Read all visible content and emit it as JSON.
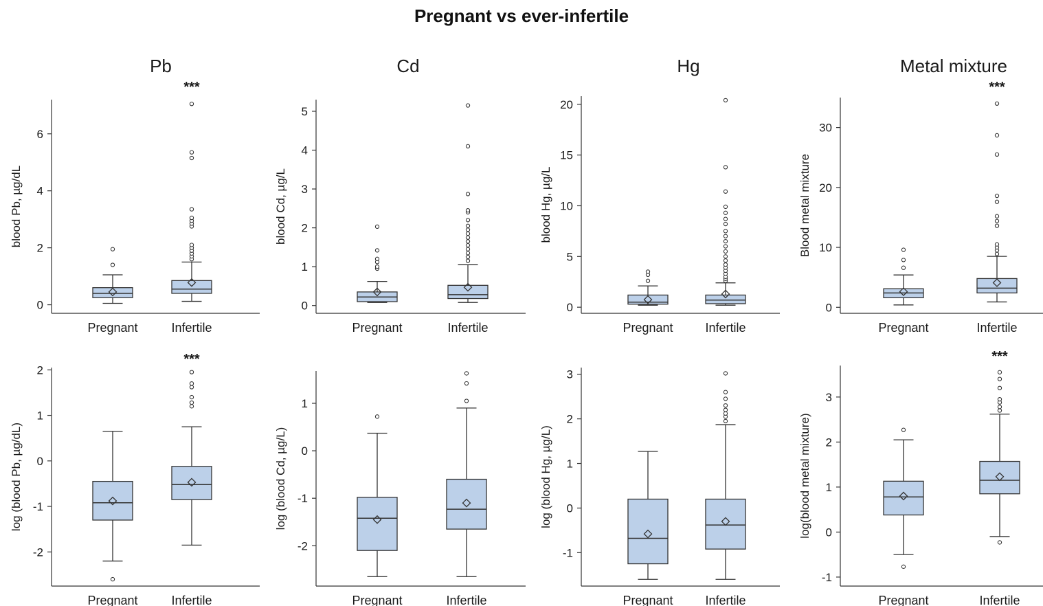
{
  "title": "Pregnant  vs ever-infertile",
  "colors": {
    "box_fill": "#bcd0e9",
    "box_stroke": "#333333",
    "axis": "#333333"
  },
  "chart_data": [
    {
      "type": "box",
      "column_title": "Pb",
      "ylabel": "blood Pb, µg/dL",
      "yticks": [
        0,
        2,
        4,
        6
      ],
      "ylim": [
        -0.3,
        7.2
      ],
      "significance": "***",
      "categories": [
        "Pregnant",
        "Infertile"
      ],
      "groups": [
        {
          "label": "Pregnant",
          "whisker_low": 0.05,
          "q1": 0.25,
          "median": 0.4,
          "q3": 0.6,
          "whisker_high": 1.05,
          "mean": 0.45,
          "outliers": [
            1.4,
            1.95
          ]
        },
        {
          "label": "Infertile",
          "whisker_low": 0.12,
          "q1": 0.4,
          "median": 0.55,
          "q3": 0.85,
          "whisker_high": 1.5,
          "mean": 0.78,
          "outliers": [
            1.6,
            1.7,
            1.8,
            1.9,
            2.0,
            2.1,
            2.75,
            2.85,
            2.95,
            3.05,
            3.35,
            5.15,
            5.35,
            7.05
          ]
        }
      ]
    },
    {
      "type": "box",
      "column_title": "Cd",
      "ylabel": "blood Cd, µg/L",
      "yticks": [
        0,
        1,
        2,
        3,
        4,
        5
      ],
      "ylim": [
        -0.2,
        5.3
      ],
      "significance": "",
      "categories": [
        "Pregnant",
        "Infertile"
      ],
      "groups": [
        {
          "label": "Pregnant",
          "whisker_low": 0.08,
          "q1": 0.1,
          "median": 0.22,
          "q3": 0.35,
          "whisker_high": 0.62,
          "mean": 0.35,
          "outliers": [
            0.95,
            1.0,
            1.12,
            1.2,
            1.42,
            2.03
          ]
        },
        {
          "label": "Infertile",
          "whisker_low": 0.08,
          "q1": 0.18,
          "median": 0.28,
          "q3": 0.52,
          "whisker_high": 1.05,
          "mean": 0.47,
          "outliers": [
            1.15,
            1.25,
            1.35,
            1.45,
            1.55,
            1.65,
            1.75,
            1.85,
            1.95,
            2.05,
            2.2,
            2.4,
            2.45,
            2.87,
            4.1,
            5.15
          ]
        }
      ]
    },
    {
      "type": "box",
      "column_title": "Hg",
      "ylabel": "blood Hg, µg/L",
      "yticks": [
        0,
        5,
        10,
        15,
        20
      ],
      "ylim": [
        -0.6,
        20.8
      ],
      "significance": "",
      "categories": [
        "Pregnant",
        "Infertile"
      ],
      "groups": [
        {
          "label": "Pregnant",
          "whisker_low": 0.2,
          "q1": 0.3,
          "median": 0.5,
          "q3": 1.2,
          "whisker_high": 2.1,
          "mean": 0.75,
          "outliers": [
            2.6,
            3.2,
            3.5
          ]
        },
        {
          "label": "Infertile",
          "whisker_low": 0.2,
          "q1": 0.35,
          "median": 0.7,
          "q3": 1.2,
          "whisker_high": 2.4,
          "mean": 1.3,
          "outliers": [
            2.6,
            2.8,
            3.0,
            3.3,
            3.6,
            3.9,
            4.2,
            4.6,
            5.0,
            5.5,
            6.0,
            6.5,
            7.0,
            7.5,
            8.2,
            8.7,
            9.3,
            9.9,
            11.4,
            13.8,
            20.4
          ]
        }
      ]
    },
    {
      "type": "box",
      "column_title": "Metal mixture",
      "ylabel": "Blood metal mixture",
      "yticks": [
        0,
        10,
        20,
        30
      ],
      "ylim": [
        -1.0,
        35.0
      ],
      "significance": "***",
      "categories": [
        "Pregnant",
        "Infertile"
      ],
      "groups": [
        {
          "label": "Pregnant",
          "whisker_low": 0.4,
          "q1": 1.6,
          "median": 2.4,
          "q3": 3.1,
          "whisker_high": 5.4,
          "mean": 2.6,
          "outliers": [
            6.6,
            7.9,
            9.6
          ]
        },
        {
          "label": "Infertile",
          "whisker_low": 0.9,
          "q1": 2.4,
          "median": 3.2,
          "q3": 4.8,
          "whisker_high": 8.5,
          "mean": 4.1,
          "outliers": [
            8.9,
            9.5,
            10.0,
            10.5,
            13.6,
            14.4,
            15.2,
            17.6,
            18.6,
            25.5,
            28.7,
            34.0
          ]
        }
      ]
    },
    {
      "type": "box",
      "column_title": "",
      "ylabel": "log (blood Pb, µg/dL)",
      "yticks": [
        -2,
        -1,
        0,
        1,
        2
      ],
      "ylim": [
        -2.75,
        2.05
      ],
      "significance": "***",
      "categories": [
        "Pregnant",
        "Infertile"
      ],
      "groups": [
        {
          "label": "Pregnant",
          "whisker_low": -2.2,
          "q1": -1.3,
          "median": -0.92,
          "q3": -0.45,
          "whisker_high": 0.65,
          "mean": -0.88,
          "outliers": [
            -2.6
          ]
        },
        {
          "label": "Infertile",
          "whisker_low": -1.85,
          "q1": -0.85,
          "median": -0.52,
          "q3": -0.12,
          "whisker_high": 0.75,
          "mean": -0.47,
          "outliers": [
            1.2,
            1.28,
            1.4,
            1.62,
            1.7,
            1.95
          ]
        }
      ]
    },
    {
      "type": "box",
      "column_title": "",
      "ylabel": "log (blood Cd, µg/L)",
      "yticks": [
        -2,
        -1,
        0,
        1
      ],
      "ylim": [
        -2.85,
        1.68
      ],
      "significance": "",
      "categories": [
        "Pregnant",
        "Infertile"
      ],
      "groups": [
        {
          "label": "Pregnant",
          "whisker_low": -2.65,
          "q1": -2.1,
          "median": -1.42,
          "q3": -0.98,
          "whisker_high": 0.37,
          "mean": -1.45,
          "outliers": [
            0.72
          ]
        },
        {
          "label": "Infertile",
          "whisker_low": -2.65,
          "q1": -1.65,
          "median": -1.23,
          "q3": -0.6,
          "whisker_high": 0.9,
          "mean": -1.1,
          "outliers": [
            1.05,
            1.42,
            1.63
          ]
        }
      ]
    },
    {
      "type": "box",
      "column_title": "",
      "ylabel": "log (blood Hg, µg/L)",
      "yticks": [
        -1,
        0,
        1,
        2,
        3
      ],
      "ylim": [
        -1.75,
        3.15
      ],
      "significance": "",
      "categories": [
        "Pregnant",
        "Infertile"
      ],
      "groups": [
        {
          "label": "Pregnant",
          "whisker_low": -1.6,
          "q1": -1.25,
          "median": -0.68,
          "q3": 0.2,
          "whisker_high": 1.27,
          "mean": -0.58,
          "outliers": []
        },
        {
          "label": "Infertile",
          "whisker_low": -1.6,
          "q1": -0.92,
          "median": -0.38,
          "q3": 0.2,
          "whisker_high": 1.87,
          "mean": -0.3,
          "outliers": [
            1.95,
            2.05,
            2.12,
            2.2,
            2.3,
            2.45,
            2.6,
            3.02
          ]
        }
      ]
    },
    {
      "type": "box",
      "column_title": "",
      "ylabel": "log(blood metal mixture)",
      "yticks": [
        -1,
        0,
        1,
        2,
        3
      ],
      "ylim": [
        -1.2,
        3.7
      ],
      "significance": "***",
      "categories": [
        "Pregnant",
        "Infertile"
      ],
      "groups": [
        {
          "label": "Pregnant",
          "whisker_low": -0.5,
          "q1": 0.38,
          "median": 0.78,
          "q3": 1.13,
          "whisker_high": 2.05,
          "mean": 0.8,
          "outliers": [
            -0.77,
            2.27
          ]
        },
        {
          "label": "Infertile",
          "whisker_low": -0.1,
          "q1": 0.85,
          "median": 1.15,
          "q3": 1.57,
          "whisker_high": 2.62,
          "mean": 1.23,
          "outliers": [
            -0.23,
            2.7,
            2.78,
            2.88,
            2.95,
            3.2,
            3.4,
            3.55
          ]
        }
      ]
    }
  ]
}
